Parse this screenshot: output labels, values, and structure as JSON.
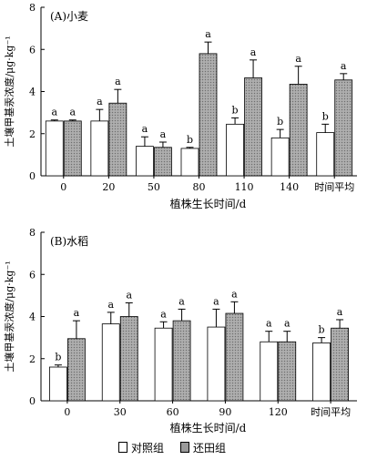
{
  "chart_data": [
    {
      "type": "bar",
      "title": "(A)小麦",
      "xlabel": "植株生长时间/d",
      "ylabel": "土壤甲基汞浓度/μg·kg⁻¹",
      "ylim": [
        0,
        8
      ],
      "yticks": [
        0,
        2,
        4,
        6,
        8
      ],
      "categories": [
        "0",
        "20",
        "50",
        "80",
        "110",
        "140",
        "时间平均"
      ],
      "series": [
        {
          "name": "对照组",
          "values": [
            2.6,
            2.6,
            1.4,
            1.3,
            2.45,
            1.8,
            2.05
          ],
          "errors": [
            0.05,
            0.55,
            0.45,
            0.05,
            0.3,
            0.4,
            0.4
          ],
          "labels": [
            "a",
            "a",
            "a",
            "b",
            "b",
            "b",
            "b"
          ],
          "color": "#ffffff"
        },
        {
          "name": "还田组",
          "values": [
            2.6,
            3.45,
            1.35,
            5.8,
            4.65,
            4.35,
            4.55
          ],
          "errors": [
            0.05,
            0.65,
            0.25,
            0.55,
            0.85,
            0.85,
            0.3
          ],
          "labels": [
            "a",
            "a",
            "a",
            "a",
            "a",
            "a",
            "a"
          ],
          "color": "#9a9a9a"
        }
      ]
    },
    {
      "type": "bar",
      "title": "(B)水稻",
      "xlabel": "植株生长时间/d",
      "ylabel": "土壤甲基汞浓度/μg·kg⁻¹",
      "ylim": [
        0,
        8
      ],
      "yticks": [
        0,
        2,
        4,
        6,
        8
      ],
      "categories": [
        "0",
        "30",
        "60",
        "90",
        "120",
        "时间平均"
      ],
      "series": [
        {
          "name": "对照组",
          "values": [
            1.6,
            3.65,
            3.45,
            3.5,
            2.8,
            2.75
          ],
          "errors": [
            0.1,
            0.55,
            0.3,
            0.85,
            0.5,
            0.25
          ],
          "labels": [
            "b",
            "a",
            "a",
            "a",
            "a",
            "b"
          ],
          "color": "#ffffff"
        },
        {
          "name": "还田组",
          "values": [
            2.95,
            4.0,
            3.8,
            4.15,
            2.8,
            3.45
          ],
          "errors": [
            0.85,
            0.65,
            0.55,
            0.55,
            0.5,
            0.4
          ],
          "labels": [
            "a",
            "a",
            "a",
            "a",
            "a",
            "a"
          ],
          "color": "#9a9a9a"
        }
      ]
    }
  ],
  "legend": {
    "control_label": "对照组",
    "treatment_label": "还田组"
  }
}
